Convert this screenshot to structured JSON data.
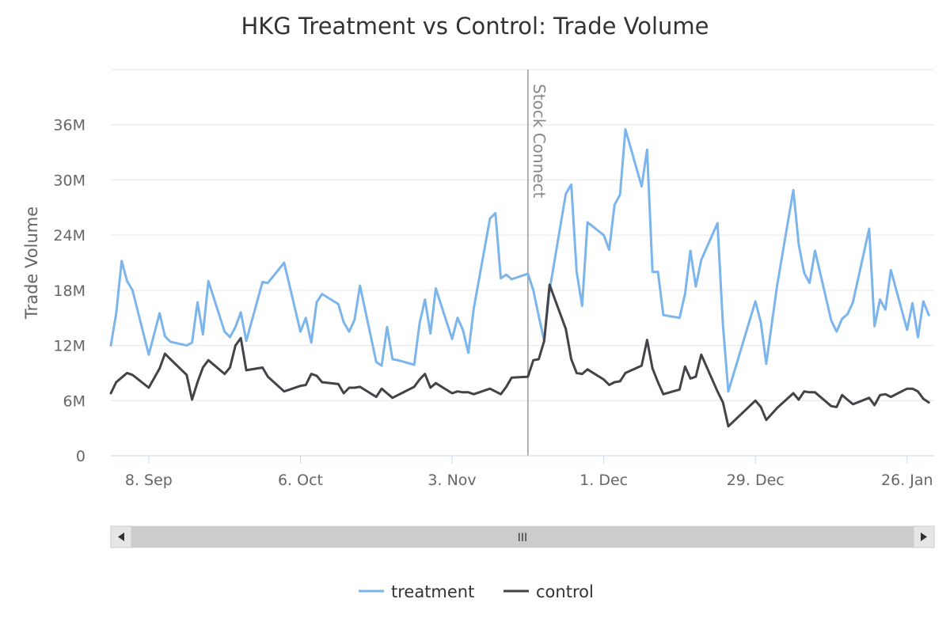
{
  "chart_data": {
    "type": "line",
    "title": "HKG Treatment vs Control: Trade Volume",
    "ylabel": "Trade Volume",
    "ylim": [
      0,
      42000000
    ],
    "yticks": [
      0,
      6000000,
      12000000,
      18000000,
      24000000,
      30000000,
      36000000
    ],
    "ytick_labels": [
      "0",
      "6M",
      "12M",
      "18M",
      "24M",
      "30M",
      "36M"
    ],
    "xlim": [
      "2014-09-01",
      "2015-01-31"
    ],
    "xticks": [
      "2014-09-08",
      "2014-10-06",
      "2014-11-03",
      "2014-12-01",
      "2014-12-29",
      "2015-01-26"
    ],
    "xtick_labels": [
      "8. Sep",
      "6. Oct",
      "3. Nov",
      "1. Dec",
      "29. Dec",
      "26. Jan"
    ],
    "grid": true,
    "legend": "bottom-center",
    "plot_line": {
      "date": "2014-11-17",
      "label": "Stock Connect"
    },
    "x": [
      "2014-09-01",
      "2014-09-02",
      "2014-09-03",
      "2014-09-04",
      "2014-09-05",
      "2014-09-08",
      "2014-09-10",
      "2014-09-11",
      "2014-09-12",
      "2014-09-15",
      "2014-09-16",
      "2014-09-17",
      "2014-09-18",
      "2014-09-19",
      "2014-09-22",
      "2014-09-23",
      "2014-09-24",
      "2014-09-25",
      "2014-09-26",
      "2014-09-29",
      "2014-09-30",
      "2014-10-03",
      "2014-10-06",
      "2014-10-07",
      "2014-10-08",
      "2014-10-09",
      "2014-10-10",
      "2014-10-13",
      "2014-10-14",
      "2014-10-15",
      "2014-10-16",
      "2014-10-17",
      "2014-10-20",
      "2014-10-21",
      "2014-10-22",
      "2014-10-23",
      "2014-10-24",
      "2014-10-27",
      "2014-10-28",
      "2014-10-29",
      "2014-10-30",
      "2014-10-31",
      "2014-11-03",
      "2014-11-04",
      "2014-11-05",
      "2014-11-06",
      "2014-11-07",
      "2014-11-10",
      "2014-11-11",
      "2014-11-12",
      "2014-11-13",
      "2014-11-14",
      "2014-11-17",
      "2014-11-18",
      "2014-11-19",
      "2014-11-20",
      "2014-11-21",
      "2014-11-24",
      "2014-11-25",
      "2014-11-26",
      "2014-11-27",
      "2014-11-28",
      "2014-12-01",
      "2014-12-02",
      "2014-12-03",
      "2014-12-04",
      "2014-12-05",
      "2014-12-08",
      "2014-12-09",
      "2014-12-10",
      "2014-12-11",
      "2014-12-12",
      "2014-12-15",
      "2014-12-16",
      "2014-12-17",
      "2014-12-18",
      "2014-12-19",
      "2014-12-22",
      "2014-12-23",
      "2014-12-24",
      "2014-12-29",
      "2014-12-30",
      "2014-12-31",
      "2015-01-02",
      "2015-01-05",
      "2015-01-06",
      "2015-01-07",
      "2015-01-08",
      "2015-01-09",
      "2015-01-12",
      "2015-01-13",
      "2015-01-14",
      "2015-01-15",
      "2015-01-16",
      "2015-01-19",
      "2015-01-20",
      "2015-01-21",
      "2015-01-22",
      "2015-01-23",
      "2015-01-26",
      "2015-01-27",
      "2015-01-28",
      "2015-01-29",
      "2015-01-30"
    ],
    "series": [
      {
        "name": "treatment",
        "color": "#7cb5ec",
        "values": [
          12000000,
          15500000,
          21200000,
          19000000,
          18000000,
          11000000,
          15500000,
          13000000,
          12400000,
          12000000,
          12300000,
          16700000,
          13200000,
          19000000,
          13500000,
          12900000,
          14000000,
          15600000,
          12500000,
          18900000,
          18800000,
          21000000,
          13500000,
          15000000,
          12300000,
          16700000,
          17600000,
          16500000,
          14500000,
          13500000,
          14800000,
          18500000,
          10200000,
          9800000,
          14000000,
          10500000,
          10400000,
          9900000,
          14400000,
          17000000,
          13300000,
          18200000,
          12700000,
          15000000,
          13700000,
          11200000,
          16000000,
          25800000,
          26400000,
          19300000,
          19700000,
          19200000,
          19800000,
          18000000,
          15200000,
          12500000,
          18000000,
          28500000,
          29500000,
          20000000,
          16300000,
          25400000,
          24000000,
          22400000,
          27300000,
          28400000,
          35500000,
          29300000,
          33300000,
          20000000,
          20000000,
          15300000,
          15000000,
          17600000,
          22300000,
          18400000,
          21300000,
          25300000,
          14200000,
          7000000,
          16800000,
          14500000,
          10000000,
          18500000,
          28900000,
          23000000,
          19900000,
          18800000,
          22300000,
          14700000,
          13500000,
          14900000,
          15400000,
          16700000,
          24700000,
          14100000,
          17000000,
          15900000,
          20200000,
          13700000,
          16600000,
          12900000,
          16800000,
          15300000
        ]
      },
      {
        "name": "control",
        "color": "#434348",
        "values": [
          6800000,
          8000000,
          8500000,
          9000000,
          8800000,
          7400000,
          9500000,
          11100000,
          10500000,
          8800000,
          6100000,
          8000000,
          9600000,
          10400000,
          8900000,
          9600000,
          12000000,
          12800000,
          9300000,
          9600000,
          8600000,
          7000000,
          7600000,
          7700000,
          8900000,
          8700000,
          8000000,
          7800000,
          6800000,
          7400000,
          7400000,
          7500000,
          6400000,
          7300000,
          6800000,
          6300000,
          6600000,
          7500000,
          8300000,
          8900000,
          7400000,
          7900000,
          6800000,
          7000000,
          6900000,
          6900000,
          6700000,
          7300000,
          7000000,
          6700000,
          7500000,
          8500000,
          8600000,
          10400000,
          10500000,
          12500000,
          18600000,
          13800000,
          10500000,
          9000000,
          8900000,
          9400000,
          8300000,
          7700000,
          8000000,
          8100000,
          9000000,
          9800000,
          12600000,
          9500000,
          8000000,
          6700000,
          7200000,
          9700000,
          8400000,
          8600000,
          11000000,
          7000000,
          5800000,
          3200000,
          6000000,
          5300000,
          3900000,
          5200000,
          6800000,
          6100000,
          7000000,
          6900000,
          6900000,
          5400000,
          5300000,
          6600000,
          6100000,
          5600000,
          6300000,
          5500000,
          6600000,
          6700000,
          6400000,
          7300000,
          7300000,
          7000000,
          6200000,
          5800000
        ]
      }
    ]
  },
  "navigator": {
    "scrollbar_grip": "III",
    "left_arrow": "left-arrow-icon",
    "right_arrow": "right-arrow-icon"
  }
}
